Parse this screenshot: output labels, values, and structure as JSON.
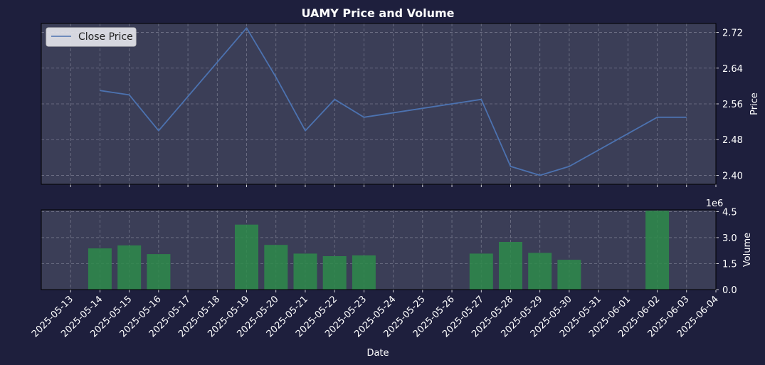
{
  "chart_data": [
    {
      "type": "line",
      "title": "UAMY Price and Volume",
      "xlabel": "",
      "ylabel": "Price",
      "ylim": [
        2.38,
        2.74
      ],
      "yticks": [
        2.4,
        2.48,
        2.56,
        2.64,
        2.72
      ],
      "grid": true,
      "legend": "top-left",
      "series": [
        {
          "name": "Close Price",
          "color": "#4c72b0",
          "points": [
            {
              "x": "2025-05-14",
              "y": 2.59
            },
            {
              "x": "2025-05-15",
              "y": 2.58
            },
            {
              "x": "2025-05-16",
              "y": 2.5
            },
            {
              "x": "2025-05-19",
              "y": 2.73
            },
            {
              "x": "2025-05-20",
              "y": 2.62
            },
            {
              "x": "2025-05-21",
              "y": 2.5
            },
            {
              "x": "2025-05-22",
              "y": 2.57
            },
            {
              "x": "2025-05-23",
              "y": 2.53
            },
            {
              "x": "2025-05-27",
              "y": 2.57
            },
            {
              "x": "2025-05-28",
              "y": 2.42
            },
            {
              "x": "2025-05-29",
              "y": 2.4
            },
            {
              "x": "2025-05-30",
              "y": 2.42
            },
            {
              "x": "2025-06-02",
              "y": 2.53
            },
            {
              "x": "2025-06-03",
              "y": 2.53
            }
          ]
        }
      ]
    },
    {
      "type": "bar",
      "xlabel": "Date",
      "ylabel": "Volume",
      "offset_text": "1e6",
      "ylim": [
        0,
        4.6
      ],
      "yticks": [
        "0.0",
        "1.5",
        "3.0",
        "4.5"
      ],
      "grid": true,
      "bar_color": "#2e8b4a",
      "bars": [
        {
          "x": "2025-05-14",
          "y": 2.38
        },
        {
          "x": "2025-05-15",
          "y": 2.55
        },
        {
          "x": "2025-05-16",
          "y": 2.05
        },
        {
          "x": "2025-05-19",
          "y": 3.75
        },
        {
          "x": "2025-05-20",
          "y": 2.58
        },
        {
          "x": "2025-05-21",
          "y": 2.08
        },
        {
          "x": "2025-05-22",
          "y": 1.93
        },
        {
          "x": "2025-05-23",
          "y": 1.97
        },
        {
          "x": "2025-05-27",
          "y": 2.08
        },
        {
          "x": "2025-05-28",
          "y": 2.75
        },
        {
          "x": "2025-05-29",
          "y": 2.12
        },
        {
          "x": "2025-05-30",
          "y": 1.72
        },
        {
          "x": "2025-06-02",
          "y": 4.55
        }
      ]
    }
  ],
  "x_axis": {
    "dates": [
      "2025-05-13",
      "2025-05-14",
      "2025-05-15",
      "2025-05-16",
      "2025-05-17",
      "2025-05-18",
      "2025-05-19",
      "2025-05-20",
      "2025-05-21",
      "2025-05-22",
      "2025-05-23",
      "2025-05-24",
      "2025-05-25",
      "2025-05-26",
      "2025-05-27",
      "2025-05-28",
      "2025-05-29",
      "2025-05-30",
      "2025-05-31",
      "2025-06-01",
      "2025-06-02",
      "2025-06-03",
      "2025-06-04"
    ],
    "range": [
      "2025-05-12",
      "2025-06-04"
    ]
  },
  "colors": {
    "figure_bg": "#1e1f3d",
    "axes_bg": "#3b3e57",
    "grid": "#73768a",
    "text": "#ffffff"
  }
}
